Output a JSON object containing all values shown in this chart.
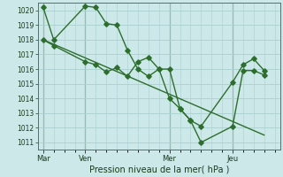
{
  "bg_color": "#cce8e8",
  "grid_color": "#aacfcf",
  "line_color": "#2d6e2d",
  "title": "Pression niveau de la mer( hPa )",
  "ylim": [
    1010.5,
    1020.5
  ],
  "yticks": [
    1011,
    1012,
    1013,
    1014,
    1015,
    1016,
    1017,
    1018,
    1019,
    1020
  ],
  "xtick_labels": [
    "Mar",
    "Ven",
    "Mer",
    "Jeu"
  ],
  "xtick_positions": [
    0,
    4,
    12,
    18
  ],
  "xlim": [
    -0.5,
    22.5
  ],
  "vline_positions": [
    0,
    4,
    12,
    18
  ],
  "series1_x": [
    0,
    1,
    4,
    5,
    6,
    7,
    8,
    9,
    10,
    11,
    12,
    13,
    14,
    15,
    18,
    19,
    20,
    21
  ],
  "series1_y": [
    1020.2,
    1018.0,
    1020.3,
    1020.2,
    1019.1,
    1019.0,
    1017.3,
    1016.0,
    1015.5,
    1016.0,
    1016.0,
    1013.3,
    1012.5,
    1011.0,
    1012.1,
    1015.9,
    1015.9,
    1015.6
  ],
  "series2_x": [
    0,
    1,
    4,
    5,
    6,
    7,
    8,
    9,
    10,
    11,
    12,
    13,
    14,
    15,
    18,
    19,
    20,
    21
  ],
  "series2_y": [
    1018.0,
    1017.6,
    1016.5,
    1016.3,
    1015.8,
    1016.1,
    1015.5,
    1016.5,
    1016.8,
    1016.0,
    1014.0,
    1013.3,
    1012.5,
    1012.1,
    1015.1,
    1016.3,
    1016.7,
    1015.9
  ],
  "trend_x": [
    0,
    21
  ],
  "trend_y": [
    1018.0,
    1011.5
  ]
}
